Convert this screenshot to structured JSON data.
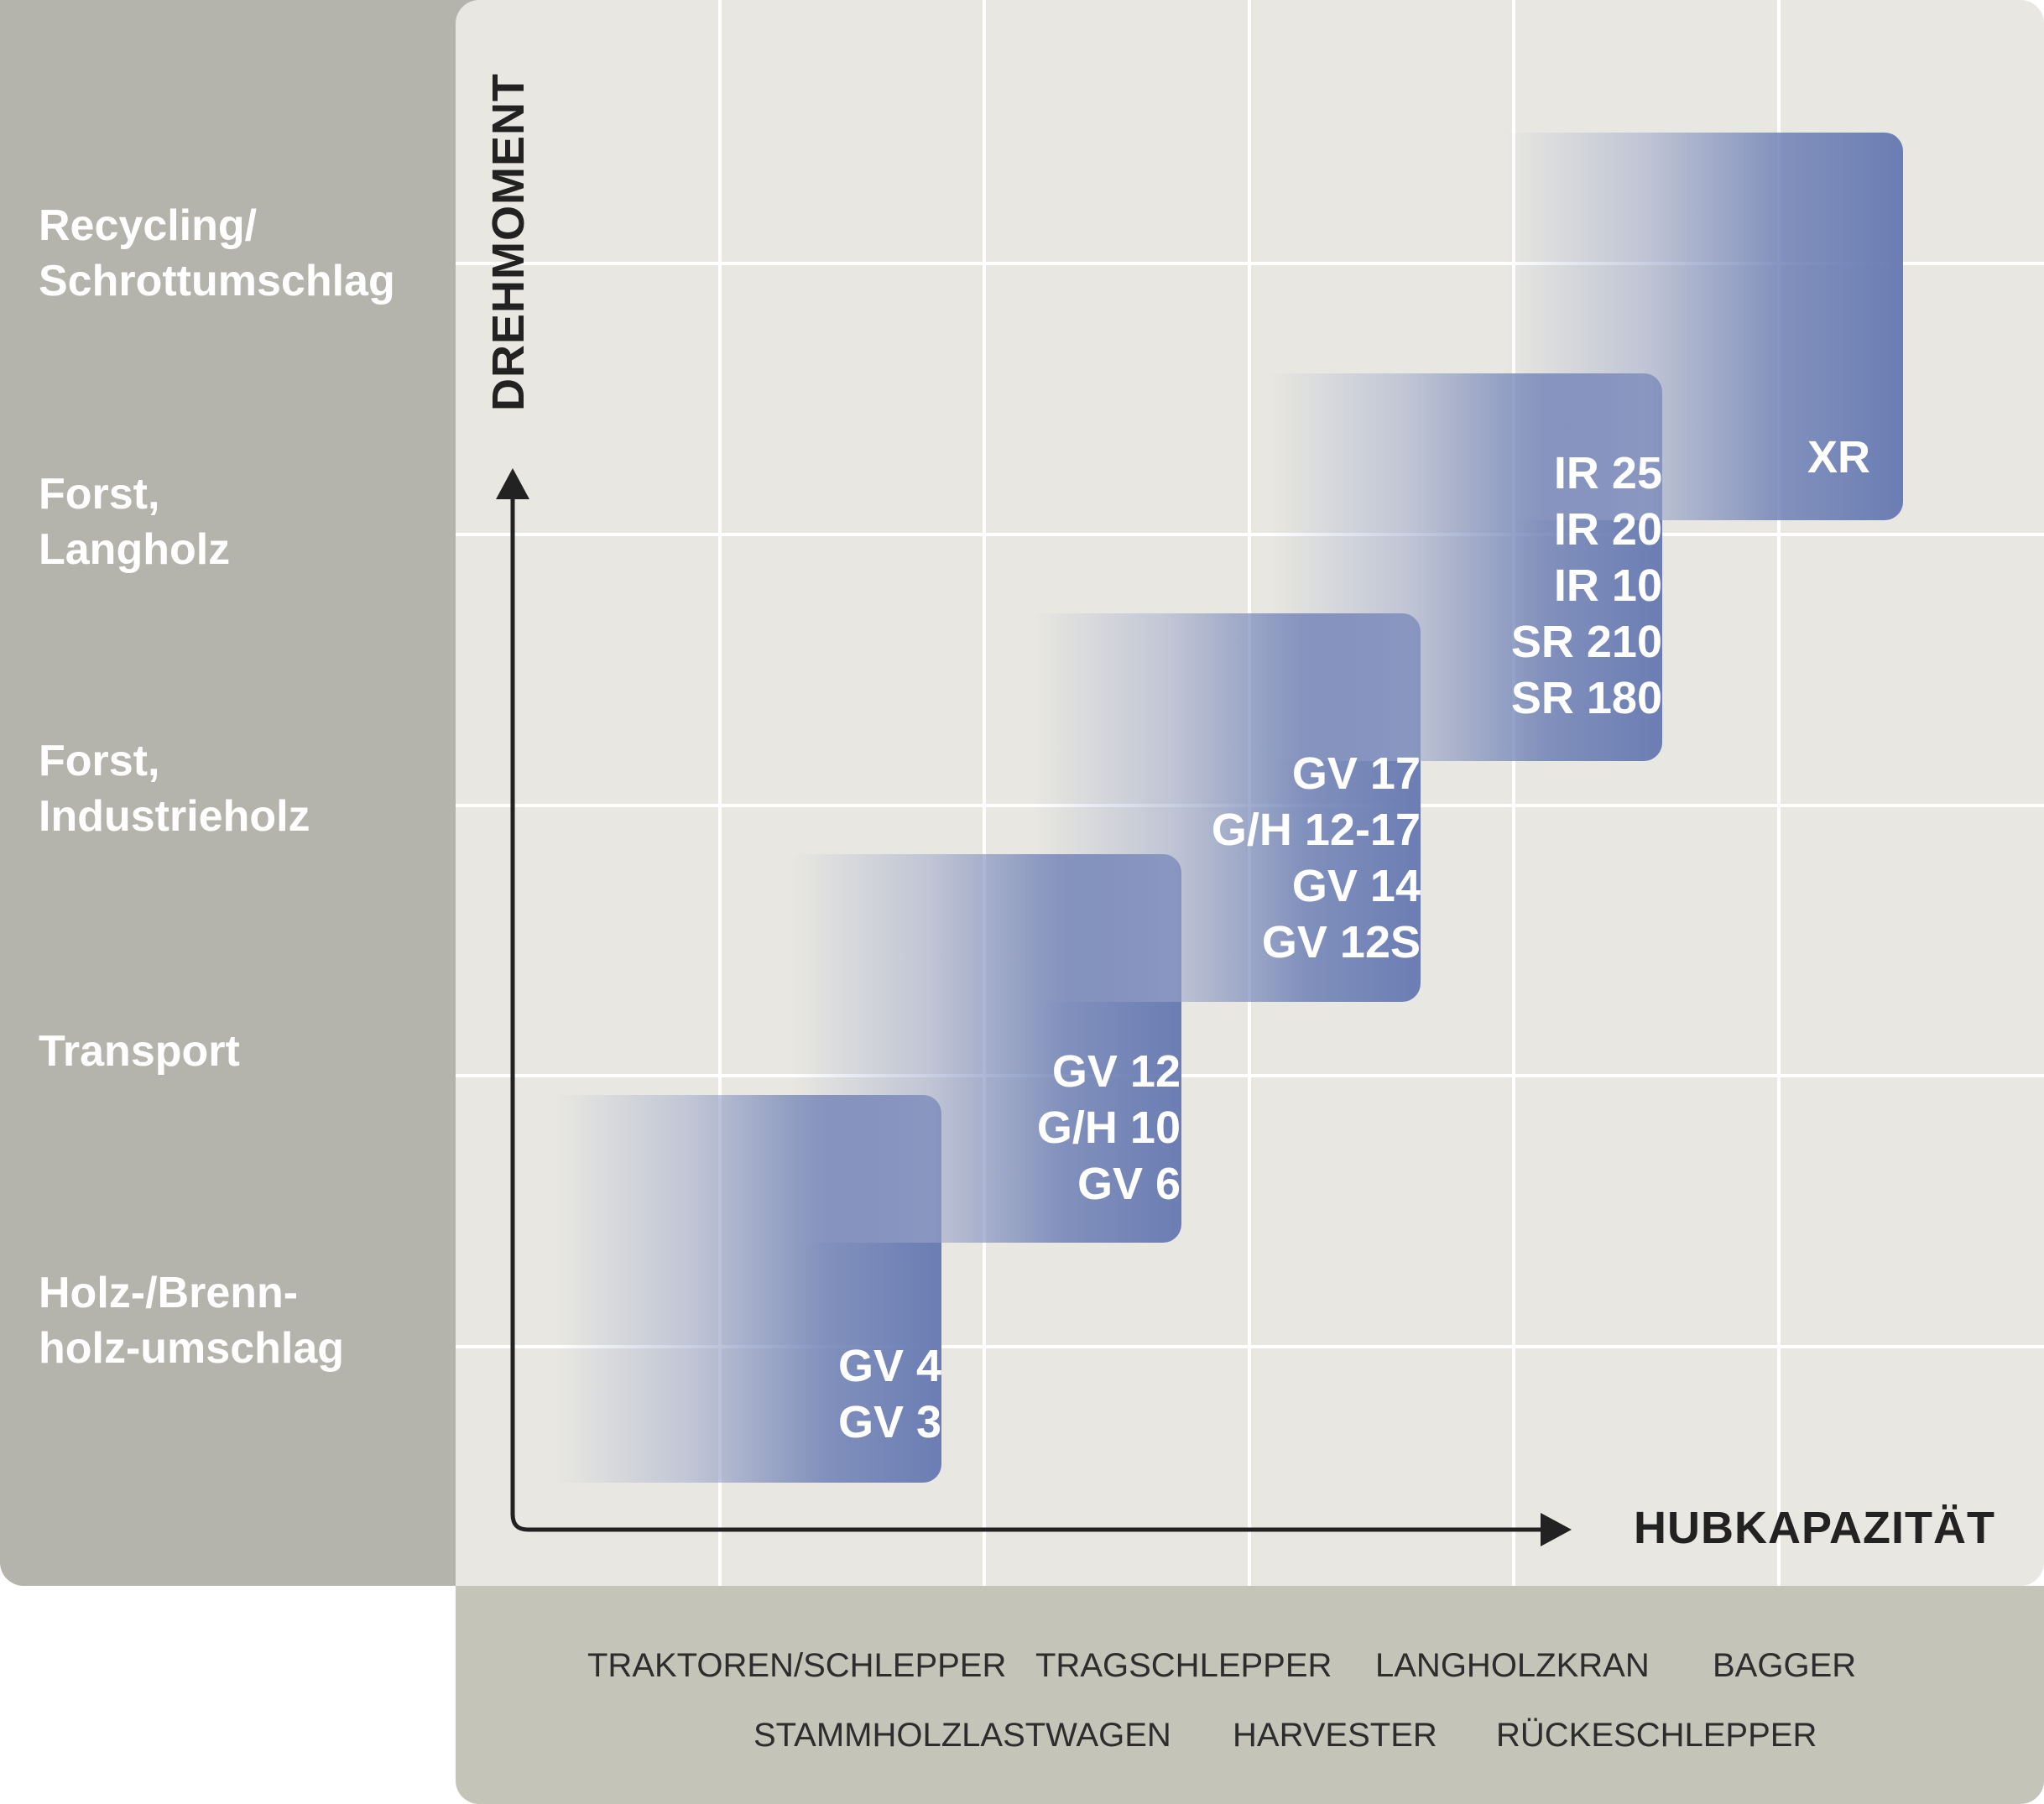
{
  "categories": [
    {
      "label": "Recycling/\nSchrottumschlag"
    },
    {
      "label": "Forst,\nLangholz"
    },
    {
      "label": "Forst,\nIndustrieholz"
    },
    {
      "label": "Transport"
    },
    {
      "label": "Holz-/Brenn-\nholz-umschlag"
    }
  ],
  "axes": {
    "y_label": "DREHMOMENT",
    "x_label": "HUBKAPAZITÄT"
  },
  "product_groups": [
    {
      "models": [
        "GV 4",
        "GV 3"
      ]
    },
    {
      "models": [
        "GV 12",
        "G/H 10",
        "GV 6"
      ]
    },
    {
      "models": [
        "GV 17",
        "G/H 12-17",
        "GV 14",
        "GV 12S"
      ]
    },
    {
      "models": [
        "IR 25",
        "IR 20",
        "IR 10",
        "SR 210",
        "SR 180"
      ]
    },
    {
      "models": [
        "XR"
      ]
    }
  ],
  "machines": {
    "row1": [
      "TRAKTOREN/SCHLEPPER",
      "TRAGSCHLEPPER",
      "LANGHOLZKRAN",
      "BAGGER"
    ],
    "row2": [
      "STAMMHOLZLASTWAGEN",
      "HARVESTER",
      "RÜCKESCHLEPPER"
    ]
  },
  "colors": {
    "left_panel": "#b4b4ac",
    "grid_background": "#e8e7e1",
    "bottom_panel": "#c4c4b9",
    "box_blue": "#6b7db3",
    "axis": "#222222"
  }
}
